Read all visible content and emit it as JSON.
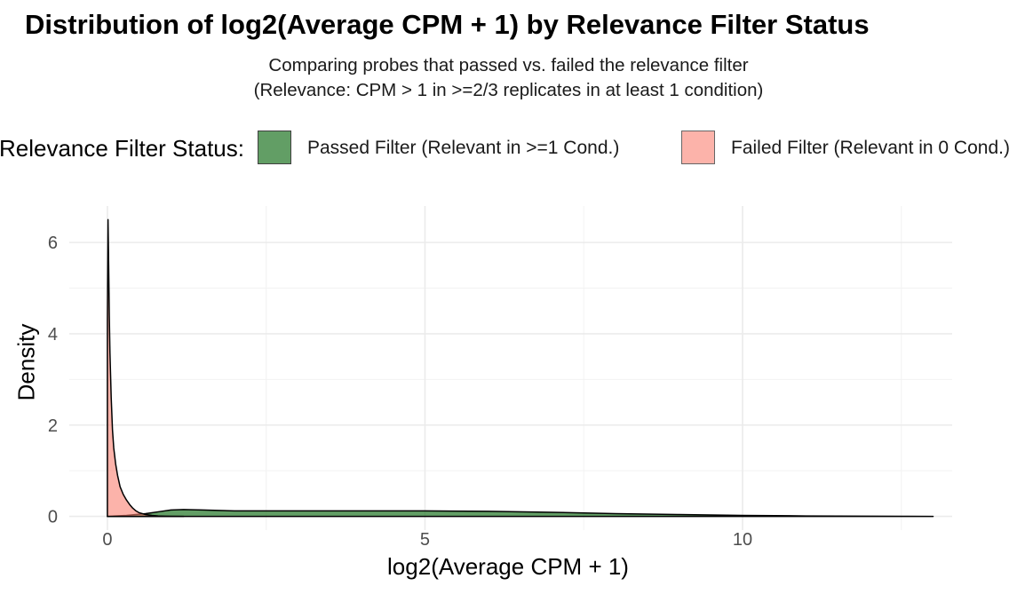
{
  "title": "Distribution of log2(Average CPM + 1) by Relevance Filter Status",
  "subtitle_line1": "Comparing probes that passed vs. failed the relevance filter",
  "subtitle_line2": "(Relevance: CPM > 1 in >=2/3 replicates in at least 1 condition)",
  "legend": {
    "title": "Relevance Filter Status:",
    "items": [
      {
        "label": "Passed Filter (Relevant in >=1 Cond.)",
        "color": "#2e7d32"
      },
      {
        "label": "Failed Filter (Relevant in 0 Cond.)",
        "color": "#fa8072"
      }
    ]
  },
  "chart_data": {
    "type": "area",
    "title": "Distribution of log2(Average CPM + 1) by Relevance Filter Status",
    "xlabel": "log2(Average CPM + 1)",
    "ylabel": "Density",
    "xlim": [
      -0.6,
      13.3
    ],
    "ylim": [
      -0.3,
      6.8
    ],
    "x_ticks": [
      0,
      5,
      10
    ],
    "x_tick_labels": [
      "0",
      "5",
      "10"
    ],
    "y_ticks": [
      0,
      2,
      4,
      6
    ],
    "y_tick_labels": [
      "0",
      "2",
      "4",
      "6"
    ],
    "grid": true,
    "legend_position": "top",
    "series": [
      {
        "name": "Passed Filter (Relevant in >=1 Cond.)",
        "color": "#2e7d32",
        "alpha": 0.75,
        "x": [
          0.0,
          0.3,
          0.6,
          0.8,
          1.0,
          1.2,
          1.5,
          2.0,
          3.0,
          4.0,
          5.0,
          6.0,
          7.0,
          8.0,
          9.0,
          10.0,
          11.0,
          12.0,
          12.6,
          13.0
        ],
        "y": [
          0.0,
          0.02,
          0.06,
          0.1,
          0.14,
          0.15,
          0.14,
          0.12,
          0.12,
          0.12,
          0.12,
          0.11,
          0.09,
          0.06,
          0.04,
          0.02,
          0.01,
          0.005,
          0.002,
          0.0
        ]
      },
      {
        "name": "Failed Filter (Relevant in 0 Cond.)",
        "color": "#fa8072",
        "alpha": 0.6,
        "x": [
          0.0,
          0.01,
          0.02,
          0.03,
          0.04,
          0.06,
          0.08,
          0.1,
          0.13,
          0.16,
          0.2,
          0.25,
          0.3,
          0.35,
          0.4,
          0.45,
          0.5,
          0.6,
          0.7,
          0.8,
          0.9,
          1.0,
          1.2
        ],
        "y": [
          4.3,
          6.5,
          5.5,
          4.4,
          3.6,
          2.6,
          1.9,
          1.5,
          1.15,
          0.9,
          0.65,
          0.48,
          0.36,
          0.26,
          0.18,
          0.12,
          0.08,
          0.04,
          0.02,
          0.01,
          0.005,
          0.002,
          0.0
        ]
      }
    ]
  }
}
